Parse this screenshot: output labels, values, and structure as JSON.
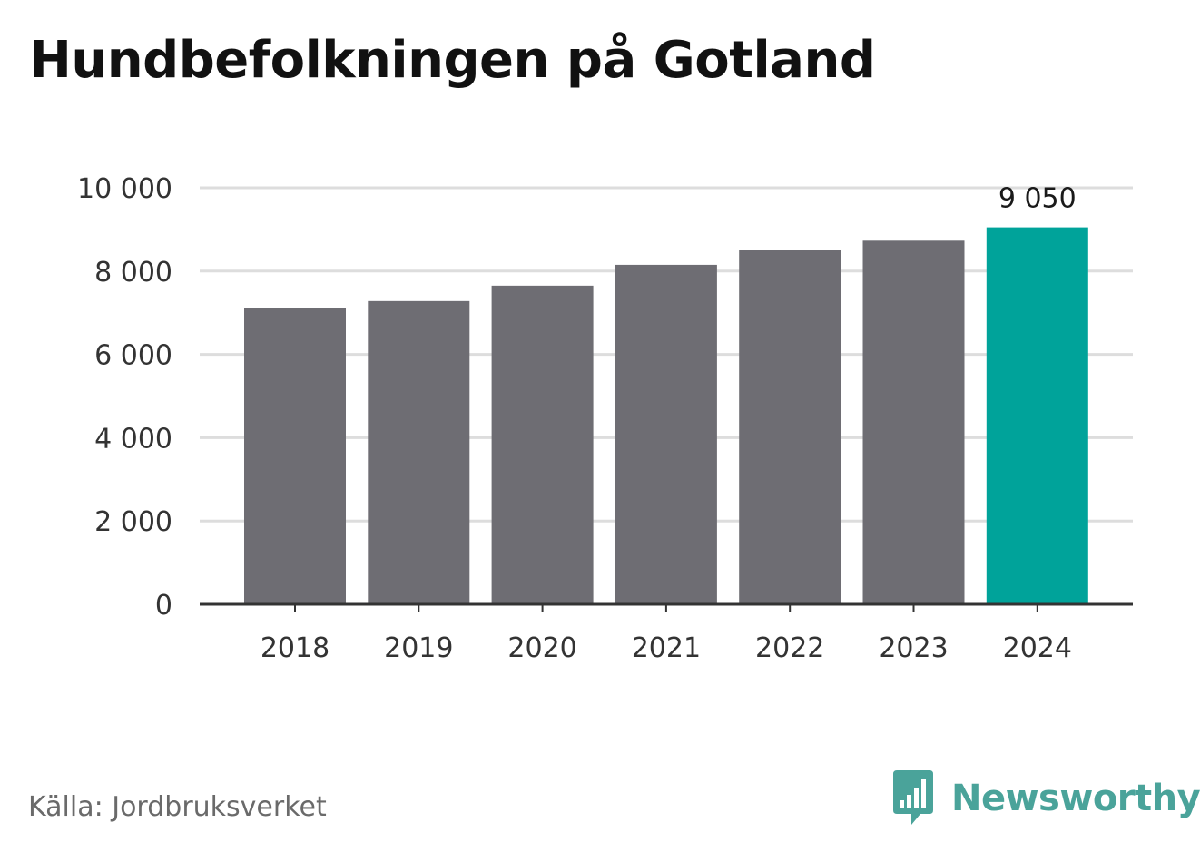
{
  "title": "Hundbefolkningen på Gotland",
  "source": "Källa: Jordbruksverket",
  "brand": {
    "name": "Newsworthy",
    "icon": "newsworthy-logo-icon",
    "color": "#4aa39a"
  },
  "colors": {
    "bar": "#6e6d73",
    "highlight": "#00a39a",
    "grid": "#dddddd",
    "axis": "#333333"
  },
  "chart_data": {
    "type": "bar",
    "title": "Hundbefolkningen på Gotland",
    "xlabel": "",
    "ylabel": "",
    "categories": [
      "2018",
      "2019",
      "2020",
      "2021",
      "2022",
      "2023",
      "2024"
    ],
    "values": [
      7120,
      7280,
      7650,
      8150,
      8500,
      8730,
      9050
    ],
    "value_labels": [
      "",
      "",
      "",
      "",
      "",
      "",
      "9 050"
    ],
    "highlight_index": 6,
    "ylim": [
      0,
      10000
    ],
    "yticks": [
      0,
      2000,
      4000,
      6000,
      8000,
      10000
    ],
    "ytick_labels": [
      "0",
      "2 000",
      "4 000",
      "6 000",
      "8 000",
      "10 000"
    ],
    "grid": true,
    "legend": "none"
  }
}
